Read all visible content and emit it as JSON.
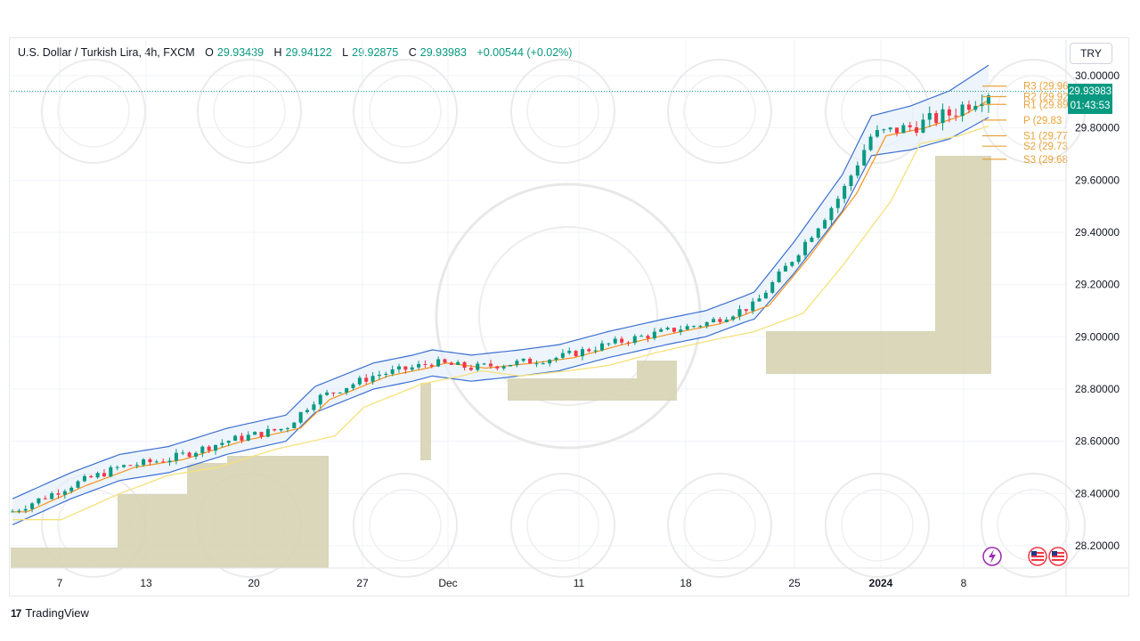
{
  "header": {
    "symbol": "U.S. Dollar / Turkish Lira, 4h, FXCM",
    "open_label": "O",
    "open": "29.93439",
    "high_label": "H",
    "high": "29.94122",
    "low_label": "L",
    "low": "29.92875",
    "close_label": "C",
    "close": "29.93983",
    "change": "+0.00544 (+0.02%)"
  },
  "currency_button": "TRY",
  "last_price": {
    "value": "29.93983",
    "countdown": "01:43:53"
  },
  "brand": "TradingView",
  "colors": {
    "up": "#089981",
    "down": "#f23645",
    "bb": "#3b6fd1",
    "ema": "#f7931a",
    "sma": "#f5e17a",
    "volume_profile": "#d6d3b3",
    "pivot": "#e8a23a"
  },
  "chart_data": {
    "type": "candlestick",
    "ylim": [
      28.1,
      30.05
    ],
    "y_ticks": [
      "30.00000",
      "29.80000",
      "29.60000",
      "29.40000",
      "29.20000",
      "29.00000",
      "28.80000",
      "28.60000",
      "28.40000",
      "28.20000"
    ],
    "x_ticks": [
      "7",
      "13",
      "20",
      "27",
      "Dec",
      "11",
      "18",
      "25",
      "2024",
      "8"
    ],
    "pivots": [
      {
        "label": "R3 (29.96",
        "value": 29.96
      },
      {
        "label": "R2 (29.92",
        "value": 29.92
      },
      {
        "label": "R1 (29.89",
        "value": 29.89
      },
      {
        "label": "P (29.83",
        "value": 29.83
      },
      {
        "label": "S1 (29.77",
        "value": 29.77
      },
      {
        "label": "S2 (29.73",
        "value": 29.73
      },
      {
        "label": "S3 (29.68",
        "value": 29.68
      }
    ],
    "trend": [
      [
        28.33,
        0.0
      ],
      [
        28.43,
        0.06
      ],
      [
        28.5,
        0.11
      ],
      [
        28.53,
        0.16
      ],
      [
        28.6,
        0.22
      ],
      [
        28.65,
        0.28
      ],
      [
        28.76,
        0.31
      ],
      [
        28.85,
        0.37
      ],
      [
        28.88,
        0.41
      ],
      [
        28.9,
        0.43
      ],
      [
        28.88,
        0.47
      ],
      [
        28.9,
        0.52
      ],
      [
        28.92,
        0.56
      ],
      [
        28.97,
        0.61
      ],
      [
        29.02,
        0.67
      ],
      [
        29.05,
        0.71
      ],
      [
        29.12,
        0.76
      ],
      [
        29.3,
        0.8
      ],
      [
        29.55,
        0.85
      ],
      [
        29.77,
        0.88
      ],
      [
        29.8,
        0.92
      ],
      [
        29.85,
        0.96
      ],
      [
        29.94,
        1.0
      ]
    ],
    "candle_count": 150
  }
}
